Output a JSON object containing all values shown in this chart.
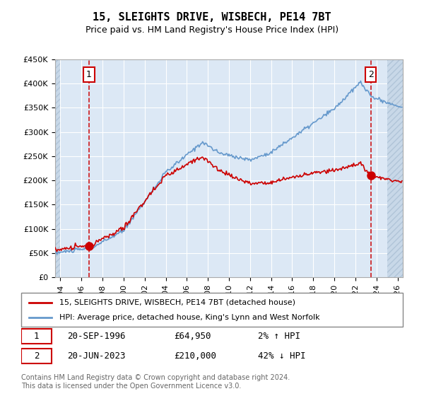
{
  "title": "15, SLEIGHTS DRIVE, WISBECH, PE14 7BT",
  "subtitle": "Price paid vs. HM Land Registry's House Price Index (HPI)",
  "property_label": "15, SLEIGHTS DRIVE, WISBECH, PE14 7BT (detached house)",
  "hpi_label": "HPI: Average price, detached house, King's Lynn and West Norfolk",
  "annotation1_date": "20-SEP-1996",
  "annotation1_price": "£64,950",
  "annotation1_hpi": "2% ↑ HPI",
  "annotation2_date": "20-JUN-2023",
  "annotation2_price": "£210,000",
  "annotation2_hpi": "42% ↓ HPI",
  "footnote": "Contains HM Land Registry data © Crown copyright and database right 2024.\nThis data is licensed under the Open Government Licence v3.0.",
  "property_color": "#cc0000",
  "hpi_color": "#6699cc",
  "background_plot": "#dce8f5",
  "background_hatch": "#c8d8e8",
  "ylim": [
    0,
    450000
  ],
  "xlim_start": 1993.5,
  "xlim_end": 2026.5,
  "sale1_year": 1996.72,
  "sale1_price": 64950,
  "sale2_year": 2023.46,
  "sale2_price": 210000
}
